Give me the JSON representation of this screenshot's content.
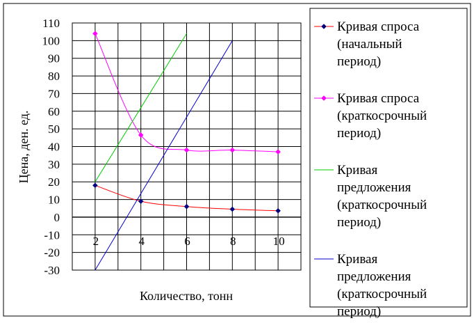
{
  "chart_data": {
    "type": "scatter",
    "xlabel": "Количество, тонн",
    "ylabel": "Цена, ден. ед.",
    "xlim": [
      1,
      11
    ],
    "ylim": [
      -30,
      110
    ],
    "x_ticks": [
      2,
      4,
      6,
      8,
      10
    ],
    "y_ticks": [
      -30,
      -20,
      -10,
      0,
      10,
      20,
      30,
      40,
      50,
      60,
      70,
      80,
      90,
      100,
      110
    ],
    "grid": true,
    "legend_position": "right",
    "series": [
      {
        "name": "Кривая спроса (начальный период)",
        "legend_lines": [
          "Кривая спроса",
          "(начальный",
          "период)"
        ],
        "color": "#ff0000",
        "marker": "diamond",
        "marker_color": "#000080",
        "smooth": true,
        "x": [
          2,
          4,
          6,
          8,
          10
        ],
        "y": [
          18,
          9,
          6,
          4.5,
          3.6
        ]
      },
      {
        "name": "Кривая спроса (краткосрочный период)",
        "legend_lines": [
          "Кривая спроса",
          "(краткосрочный",
          "период)"
        ],
        "color": "#ff00ff",
        "marker": "diamond",
        "marker_color": "#ff00ff",
        "smooth": true,
        "x": [
          2,
          4,
          6,
          8,
          10
        ],
        "y": [
          104,
          46.5,
          38,
          38,
          37
        ]
      },
      {
        "name": "Кривая предложения (краткосрочный период)",
        "legend_lines": [
          "Кривая",
          "предложения",
          "(краткосрочный",
          "период)"
        ],
        "color": "#00cc00",
        "marker": "none",
        "smooth": false,
        "x": [
          2,
          6
        ],
        "y": [
          20,
          104
        ]
      },
      {
        "name": "Кривая предложения (краткосрочный период)",
        "legend_lines": [
          "Кривая",
          "предложения",
          "(краткосрочный",
          "период)"
        ],
        "color": "#0000cc",
        "marker": "none",
        "smooth": false,
        "x": [
          2,
          8
        ],
        "y": [
          -30,
          100
        ]
      }
    ]
  }
}
